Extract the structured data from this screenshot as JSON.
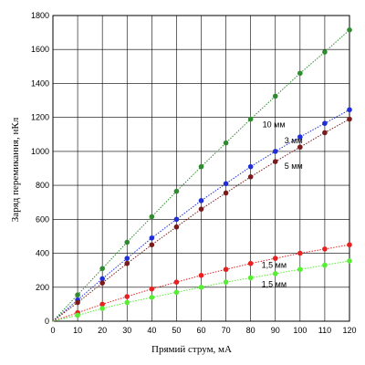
{
  "chart_data": {
    "type": "line",
    "xlabel": "Прямий струм, мА",
    "ylabel": "Заряд перемикання, нКл",
    "xlim": [
      0,
      120
    ],
    "ylim": [
      0,
      1800
    ],
    "x_ticks": [
      0,
      10,
      20,
      30,
      40,
      50,
      60,
      70,
      80,
      90,
      100,
      110,
      120
    ],
    "y_ticks": [
      0,
      200,
      400,
      600,
      800,
      1000,
      1200,
      1400,
      1600,
      1800
    ],
    "grid": true,
    "x": [
      0,
      10,
      20,
      30,
      40,
      50,
      60,
      70,
      80,
      90,
      100,
      110,
      120
    ],
    "series": [
      {
        "name": "10 мм",
        "color": "#2e8b2e",
        "values": [
          0,
          155,
          310,
          465,
          615,
          765,
          910,
          1050,
          1190,
          1325,
          1460,
          1585,
          1715
        ]
      },
      {
        "name": "3 мм",
        "color": "#1f2ed8",
        "values": [
          0,
          125,
          250,
          370,
          490,
          600,
          710,
          810,
          910,
          1000,
          1085,
          1165,
          1245
        ]
      },
      {
        "name": "5 мм",
        "color": "#7a1a1a",
        "values": [
          0,
          110,
          225,
          340,
          450,
          555,
          660,
          755,
          850,
          940,
          1025,
          1110,
          1190
        ]
      },
      {
        "name": "1,5 мм",
        "color": "#e82020",
        "values": [
          0,
          50,
          100,
          145,
          190,
          230,
          270,
          305,
          340,
          370,
          400,
          425,
          450
        ]
      },
      {
        "name": "1,5 мм",
        "color": "#55ee33",
        "values": [
          0,
          35,
          75,
          110,
          140,
          170,
          200,
          230,
          255,
          280,
          305,
          330,
          355
        ]
      }
    ]
  }
}
